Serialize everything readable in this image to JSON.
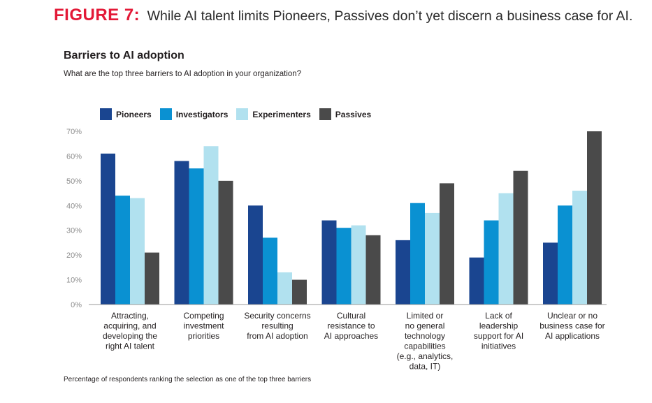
{
  "figure": {
    "label": "FIGURE 7:",
    "caption": "While AI talent limits Pioneers, Passives don’t yet discern a business case for AI."
  },
  "chart_data": {
    "type": "bar",
    "title": "Barriers to AI adoption",
    "subtitle": "What are the top three barriers to AI adoption in your organization?",
    "ylim": [
      0,
      70
    ],
    "yticks": [
      "0%",
      "10%",
      "20%",
      "30%",
      "40%",
      "50%",
      "60%",
      "70%"
    ],
    "grid": false,
    "legend_position": "top-left",
    "categories": [
      [
        "Attracting,",
        "acquiring, and",
        "developing the",
        "right AI talent"
      ],
      [
        "Competing",
        "investment",
        "priorities"
      ],
      [
        "Security concerns",
        "resulting",
        "from AI adoption"
      ],
      [
        "Cultural",
        "resistance to",
        "AI approaches"
      ],
      [
        "Limited or",
        "no general",
        "technology",
        "capabilities",
        "(e.g., analytics,",
        "data, IT)"
      ],
      [
        "Lack of",
        "leadership",
        "support for AI",
        "initiatives"
      ],
      [
        "Unclear or no",
        "business case for",
        "AI applications"
      ]
    ],
    "series": [
      {
        "name": "Pioneers",
        "color": "#1a4590",
        "values": [
          61,
          58,
          40,
          34,
          26,
          19,
          25
        ]
      },
      {
        "name": "Investigators",
        "color": "#0a91d2",
        "values": [
          44,
          55,
          27,
          31,
          41,
          34,
          40
        ]
      },
      {
        "name": "Experimenters",
        "color": "#b1e1ef",
        "values": [
          43,
          64,
          13,
          32,
          37,
          45,
          46
        ]
      },
      {
        "name": "Passives",
        "color": "#4a4a4a",
        "values": [
          21,
          50,
          10,
          28,
          49,
          54,
          70
        ]
      }
    ],
    "footnote": "Percentage of respondents ranking the selection as one of the top three barriers"
  }
}
